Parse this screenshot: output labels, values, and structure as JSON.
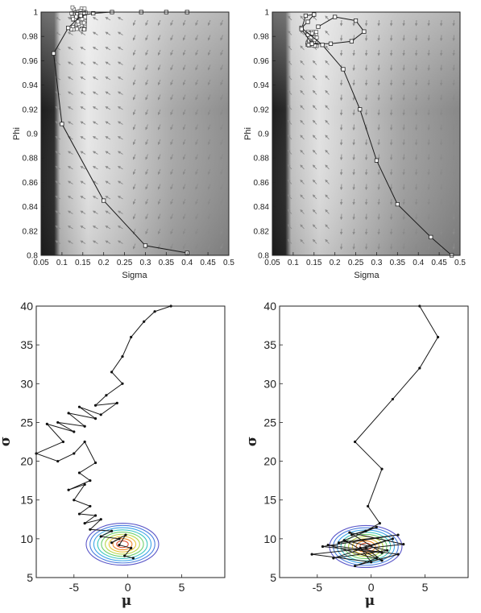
{
  "chart_data": [
    {
      "type": "line",
      "panel": "top-left",
      "xlabel": "Sigma",
      "ylabel": "Phi",
      "xlim": [
        0.05,
        0.5
      ],
      "ylim": [
        0.8,
        1.0
      ],
      "xticks": [
        "0.05",
        "0.1",
        "0.15",
        "0.2",
        "0.25",
        "0.3",
        "0.35",
        "0.4",
        "0.45",
        "0.5"
      ],
      "yticks": [
        "0.8",
        "0.82",
        "0.84",
        "0.86",
        "0.88",
        "0.9",
        "0.92",
        "0.94",
        "0.96",
        "0.98",
        "1"
      ],
      "background": "grayscale density with gradient arrow field",
      "series": [
        {
          "marker": "square",
          "x": [
            0.4,
            0.35,
            0.29,
            0.22,
            0.175,
            0.145,
            0.115,
            0.08,
            0.1,
            0.2,
            0.3,
            0.4
          ],
          "y": [
            1.0,
            1.0,
            1.0,
            1.0,
            0.999,
            0.997,
            0.987,
            0.966,
            0.908,
            0.845,
            0.808,
            0.802
          ]
        }
      ],
      "cluster": {
        "x": 0.14,
        "y": 0.99
      }
    },
    {
      "type": "line",
      "panel": "top-right",
      "xlabel": "Sigma",
      "ylabel": "Phi",
      "xlim": [
        0.05,
        0.5
      ],
      "ylim": [
        0.8,
        1.0
      ],
      "xticks": [
        "0.05",
        "0.1",
        "0.15",
        "0.2",
        "0.25",
        "0.3",
        "0.35",
        "0.4",
        "0.45",
        "0.5"
      ],
      "yticks": [
        "0.8",
        "0.82",
        "0.84",
        "0.86",
        "0.88",
        "0.9",
        "0.92",
        "0.94",
        "0.96",
        "0.98",
        "1"
      ],
      "background": "grayscale density with gradient arrow field",
      "series": [
        {
          "marker": "square",
          "x": [
            0.48,
            0.43,
            0.35,
            0.3,
            0.26,
            0.22,
            0.17,
            0.12,
            0.135,
            0.15,
            0.13,
            0.12,
            0.145,
            0.19,
            0.24,
            0.27,
            0.25,
            0.2,
            0.16
          ],
          "y": [
            0.8,
            0.815,
            0.842,
            0.878,
            0.92,
            0.953,
            0.973,
            0.987,
            0.992,
            0.998,
            0.997,
            0.986,
            0.974,
            0.974,
            0.976,
            0.984,
            0.993,
            0.996,
            0.988
          ]
        }
      ],
      "cluster": {
        "x": 0.145,
        "y": 0.978
      }
    },
    {
      "type": "line",
      "panel": "bottom-left",
      "xlabel": "μ",
      "ylabel": "σ",
      "xlim": [
        -8.5,
        9
      ],
      "ylim": [
        5,
        40
      ],
      "xticks": [
        "-5",
        "0",
        "5"
      ],
      "yticks": [
        "5",
        "10",
        "15",
        "20",
        "25",
        "30",
        "35",
        "40"
      ],
      "contour_center": {
        "x": -0.5,
        "y": 9.3
      },
      "series": [
        {
          "marker": "dot",
          "x": [
            4.0,
            2.5,
            1.5,
            0.3,
            -0.5,
            -1.5,
            -0.5,
            -2.0,
            -3.0,
            -1.0,
            -2.5,
            -4.5,
            -3.0,
            -5.5,
            -4.0,
            -6.5,
            -5.0,
            -7.5,
            -6.0,
            -8.5,
            -6.5,
            -5.0,
            -4.0,
            -3.0,
            -4.5,
            -3.5,
            -5.5,
            -4.0,
            -5.0,
            -3.5,
            -4.5,
            -3.0,
            -4.0,
            -2.5,
            -3.5,
            -1.5,
            -2.5,
            -0.8,
            -1.5,
            -0.2,
            -0.8,
            0.3,
            -0.3,
            0.5
          ],
          "y": [
            40.0,
            39.3,
            38.0,
            36.0,
            33.5,
            31.5,
            30.0,
            28.5,
            27.2,
            27.5,
            26.0,
            27.0,
            25.5,
            26.2,
            24.5,
            25.0,
            23.8,
            24.8,
            22.5,
            21.0,
            20.0,
            21.0,
            22.5,
            19.8,
            18.5,
            17.5,
            16.3,
            17.0,
            15.0,
            14.2,
            13.2,
            13.0,
            12.0,
            12.5,
            11.2,
            11.0,
            10.3,
            10.0,
            9.5,
            10.5,
            9.2,
            8.8,
            7.8,
            7.5
          ]
        }
      ]
    },
    {
      "type": "line",
      "panel": "bottom-right",
      "xlabel": "μ",
      "ylabel": "σ",
      "xlim": [
        -8.5,
        9
      ],
      "ylim": [
        5,
        40
      ],
      "xticks": [
        "-5",
        "0",
        "5"
      ],
      "yticks": [
        "5",
        "10",
        "15",
        "20",
        "25",
        "30",
        "35",
        "40"
      ],
      "contour_center": {
        "x": -0.5,
        "y": 9.0
      },
      "series": [
        {
          "marker": "dot",
          "x": [
            4.5,
            6.2,
            4.5,
            2.0,
            -1.5,
            1.0,
            -0.3,
            0.8,
            -0.5,
            -1.8,
            0.5,
            -3.0,
            2.5,
            -4.5,
            1.0,
            -2.0,
            3.0,
            -5.5,
            0.0,
            -1.0,
            2.0,
            -3.5,
            1.5,
            -2.5,
            0.5,
            -1.5,
            2.5,
            -4.0,
            1.0,
            -0.5
          ],
          "y": [
            40.0,
            36.0,
            32.0,
            28.0,
            22.5,
            19.0,
            14.2,
            12.0,
            11.0,
            10.5,
            11.5,
            9.5,
            10.5,
            9.0,
            8.2,
            10.8,
            9.3,
            8.0,
            7.0,
            8.8,
            10.0,
            7.5,
            8.5,
            9.8,
            7.5,
            6.5,
            8.0,
            9.2,
            7.2,
            8.8
          ]
        }
      ]
    }
  ]
}
